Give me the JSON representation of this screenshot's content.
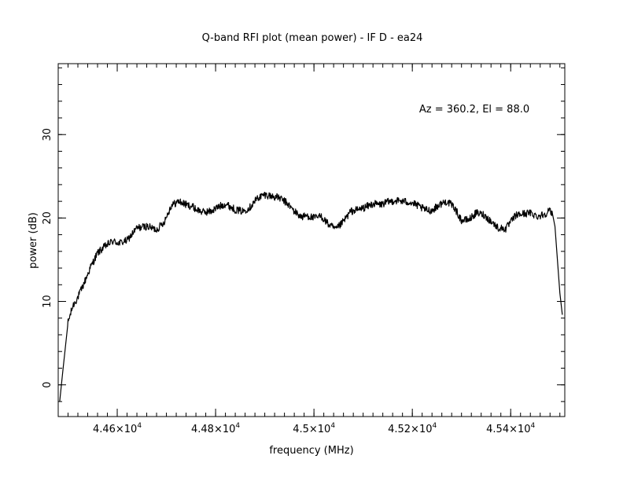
{
  "chart_data": {
    "type": "line",
    "title": "Q-band RFI plot (mean power) - IF D - ea24",
    "xlabel": "frequency (MHz)",
    "ylabel": "power (dB)",
    "annotation": "Az = 360.2, El = 88.0",
    "xlim": [
      44480,
      45510
    ],
    "ylim": [
      -3.8,
      38.5
    ],
    "x_ticks": [
      {
        "value": 44600,
        "mantissa": "4.46",
        "exponent": "4"
      },
      {
        "value": 44800,
        "mantissa": "4.48",
        "exponent": "4"
      },
      {
        "value": 45000,
        "mantissa": "4.5",
        "exponent": "4"
      },
      {
        "value": 45200,
        "mantissa": "4.52",
        "exponent": "4"
      },
      {
        "value": 45400,
        "mantissa": "4.54",
        "exponent": "4"
      }
    ],
    "x_minor_step": 20,
    "y_ticks": [
      {
        "value": 0,
        "label": "0"
      },
      {
        "value": 10,
        "label": "10"
      },
      {
        "value": 20,
        "label": "20"
      },
      {
        "value": 30,
        "label": "30"
      }
    ],
    "y_minor_step": 2,
    "grid": false,
    "series": [
      {
        "color": "#000000",
        "x": [
          44483,
          44490,
          44500,
          44510,
          44520,
          44530,
          44545,
          44560,
          44575,
          44590,
          44605,
          44620,
          44640,
          44660,
          44680,
          44695,
          44710,
          44725,
          44740,
          44752,
          44762,
          44775,
          44790,
          44805,
          44820,
          44840,
          44855,
          44870,
          44885,
          44900,
          44915,
          44930,
          44945,
          44960,
          44975,
          44985,
          45000,
          45015,
          45030,
          45045,
          45060,
          45075,
          45090,
          45105,
          45120,
          45135,
          45150,
          45165,
          45180,
          45195,
          45210,
          45225,
          45240,
          45255,
          45270,
          45285,
          45300,
          45315,
          45330,
          45345,
          45360,
          45375,
          45390,
          45400,
          45410,
          45425,
          45440,
          45455,
          45470,
          45478,
          45485,
          45490,
          45495,
          45500,
          45505
        ],
        "y": [
          -2.0,
          2.0,
          7.5,
          9.5,
          10.5,
          11.8,
          14.0,
          15.8,
          16.6,
          17.2,
          17.0,
          17.3,
          18.8,
          19.0,
          18.6,
          19.5,
          21.5,
          22.0,
          21.6,
          21.4,
          21.0,
          20.7,
          20.8,
          21.3,
          21.7,
          21.0,
          20.8,
          21.3,
          22.4,
          22.8,
          22.6,
          22.4,
          21.8,
          20.8,
          20.1,
          20.3,
          20.0,
          20.2,
          19.2,
          18.6,
          19.6,
          20.8,
          21.0,
          21.3,
          21.7,
          21.6,
          21.9,
          22.1,
          22.0,
          21.9,
          21.5,
          21.0,
          20.9,
          21.6,
          22.0,
          21.3,
          19.7,
          19.8,
          20.6,
          20.4,
          19.6,
          18.8,
          18.7,
          19.5,
          20.3,
          20.5,
          20.6,
          20.2,
          20.5,
          20.9,
          20.5,
          19.0,
          15.0,
          11.0,
          8.4
        ]
      }
    ]
  }
}
